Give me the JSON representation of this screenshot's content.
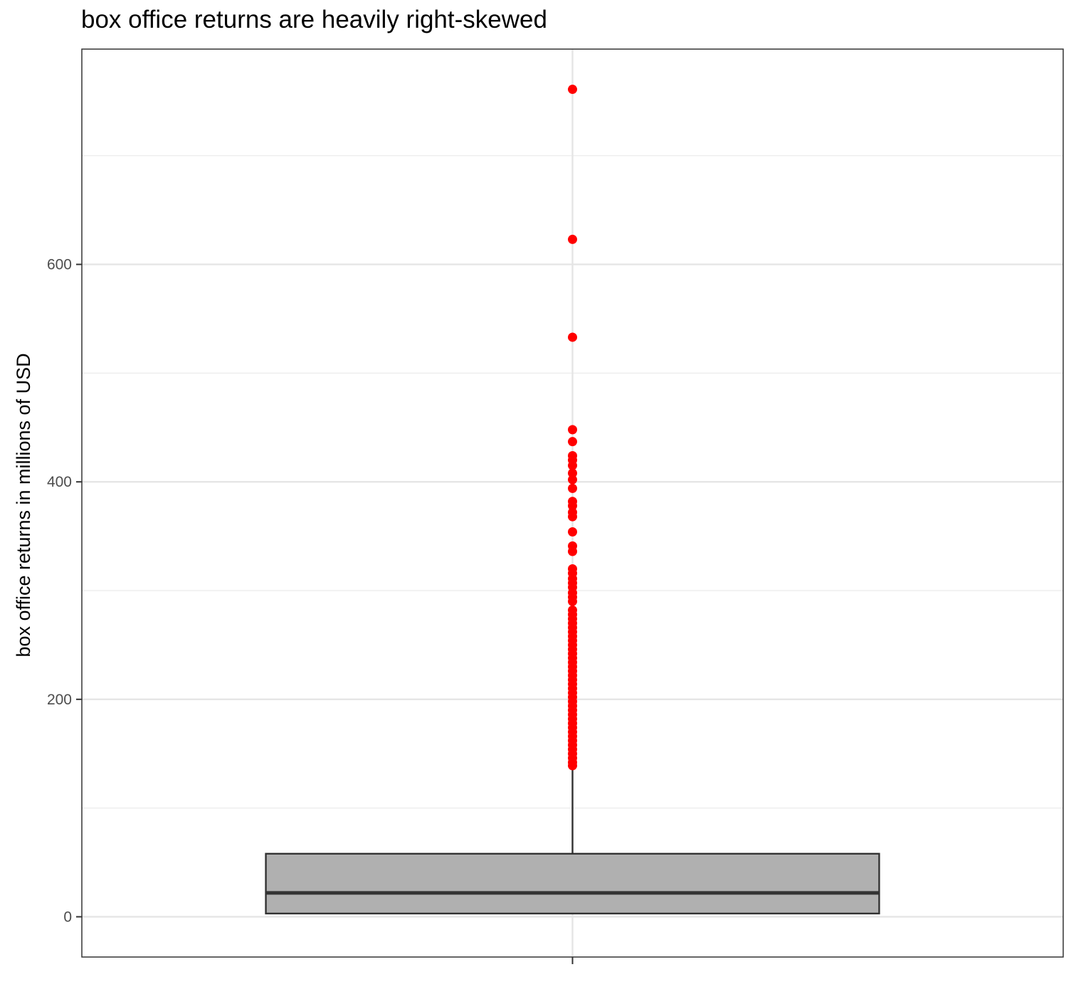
{
  "chart_data": {
    "type": "boxplot",
    "title": "box office returns are heavily right-skewed",
    "xlabel": "",
    "ylabel": "box office returns in millions of USD",
    "y_ticks": [
      0,
      200,
      400,
      600
    ],
    "ylim": [
      -37,
      798
    ],
    "grid": true,
    "box": {
      "min": 0,
      "q1": 3,
      "median": 22,
      "q3": 58,
      "whisker_high": 139,
      "fill": "#b0b0b0",
      "stroke": "#333333"
    },
    "outlier_color": "#ff0000",
    "outliers": [
      761,
      623,
      533,
      448,
      437,
      424,
      420,
      415,
      408,
      402,
      394,
      382,
      378,
      372,
      368,
      354,
      341,
      336,
      320,
      316,
      311,
      307,
      303,
      298,
      294,
      290,
      282,
      278,
      274,
      270,
      266,
      262,
      258,
      254,
      250,
      246,
      242,
      238,
      234,
      230,
      226,
      222,
      218,
      214,
      210,
      206,
      202,
      198,
      194,
      190,
      186,
      182,
      178,
      174,
      170,
      166,
      162,
      158,
      154,
      150,
      146,
      142,
      139
    ]
  }
}
